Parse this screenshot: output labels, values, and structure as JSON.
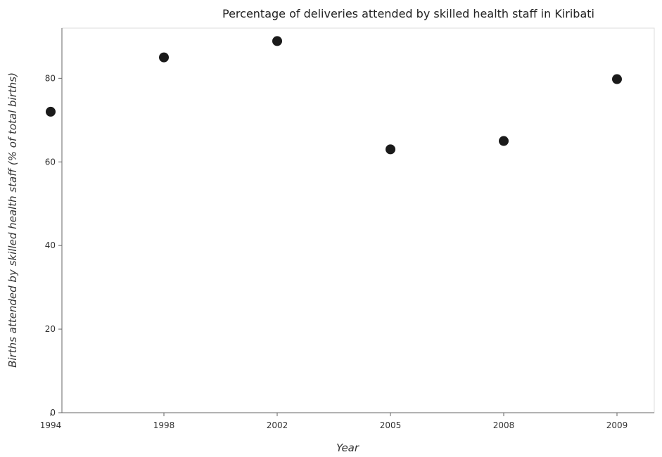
{
  "chart_data": {
    "type": "scatter",
    "title": "Percentage of deliveries attended by skilled health staff in Kiribati",
    "xlabel": "Year",
    "ylabel": "Births attended by skilled health staff (% of total births)",
    "categories": [
      "1994",
      "1998",
      "2002",
      "2005",
      "2008",
      "2009"
    ],
    "values": [
      72.0,
      85.0,
      88.9,
      63.0,
      65.0,
      79.8
    ],
    "ylim": [
      0,
      92
    ],
    "yticks": [
      0,
      20,
      40,
      60,
      80
    ],
    "grid": false,
    "series": [
      {
        "name": "Births attended by skilled health staff",
        "color": "#1a1a1a",
        "values": [
          72.0,
          85.0,
          88.9,
          63.0,
          65.0,
          79.8
        ]
      }
    ]
  }
}
